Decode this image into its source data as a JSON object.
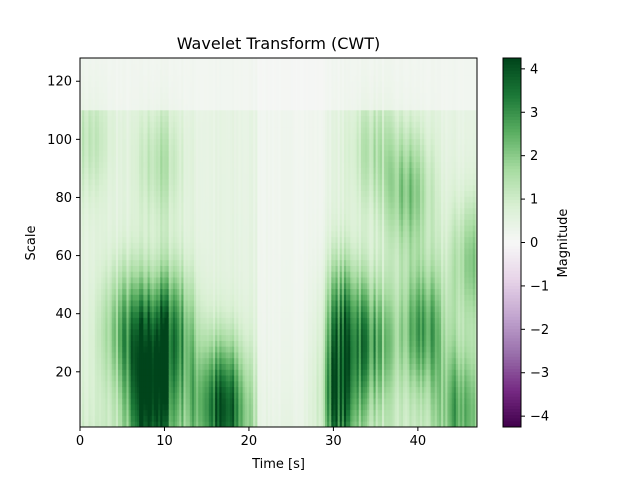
{
  "chart_data": {
    "type": "heatmap",
    "title": "Wavelet Transform (CWT)",
    "xlabel": "Time [s]",
    "ylabel": "Scale",
    "xlim": [
      0,
      47
    ],
    "ylim": [
      1,
      128
    ],
    "xticks": [
      0,
      10,
      20,
      30,
      40
    ],
    "yticks": [
      20,
      40,
      60,
      80,
      100,
      120
    ],
    "colormap": "PRGn",
    "colorbar": {
      "label": "Magnitude",
      "range": [
        -4.25,
        4.25
      ],
      "ticks": [
        4,
        3,
        2,
        1,
        0,
        -1,
        -2,
        -3,
        -4
      ],
      "tick_labels": [
        "4",
        "3",
        "2",
        "1",
        "0",
        "−1",
        "−2",
        "−3",
        "−4"
      ]
    },
    "colors": {
      "low": "#40004b",
      "mid": "#f7f7f7",
      "high": "#00441b"
    },
    "hotspots": [
      {
        "t": 8.2,
        "scale": 30,
        "mag": 2.2
      },
      {
        "t": 11.0,
        "scale": 35,
        "mag": 2.1
      },
      {
        "t": 5.0,
        "scale": 35,
        "mag": 1.5
      },
      {
        "t": 8.5,
        "scale": 5,
        "mag": 3.0
      },
      {
        "t": 17.5,
        "scale": 8,
        "mag": 2.5
      },
      {
        "t": 30.5,
        "scale": 10,
        "mag": 2.6
      },
      {
        "t": 31.0,
        "scale": 38,
        "mag": 2.1
      },
      {
        "t": 34.5,
        "scale": 30,
        "mag": 2.0
      },
      {
        "t": 40.5,
        "scale": 35,
        "mag": 2.2
      },
      {
        "t": 39.0,
        "scale": 82,
        "mag": 1.6
      },
      {
        "t": 9.5,
        "scale": 92,
        "mag": 1.0
      },
      {
        "t": 34.5,
        "scale": 96,
        "mag": 1.0
      },
      {
        "t": 45.0,
        "scale": 8,
        "mag": 1.8
      },
      {
        "t": 46.5,
        "scale": 58,
        "mag": 1.5
      },
      {
        "t": 1.0,
        "scale": 100,
        "mag": 0.8
      },
      {
        "t": 14.5,
        "scale": 10,
        "mag": 1.3
      }
    ],
    "low_band": {
      "t_start": 21,
      "t_end": 29,
      "mag": 0.2
    }
  }
}
